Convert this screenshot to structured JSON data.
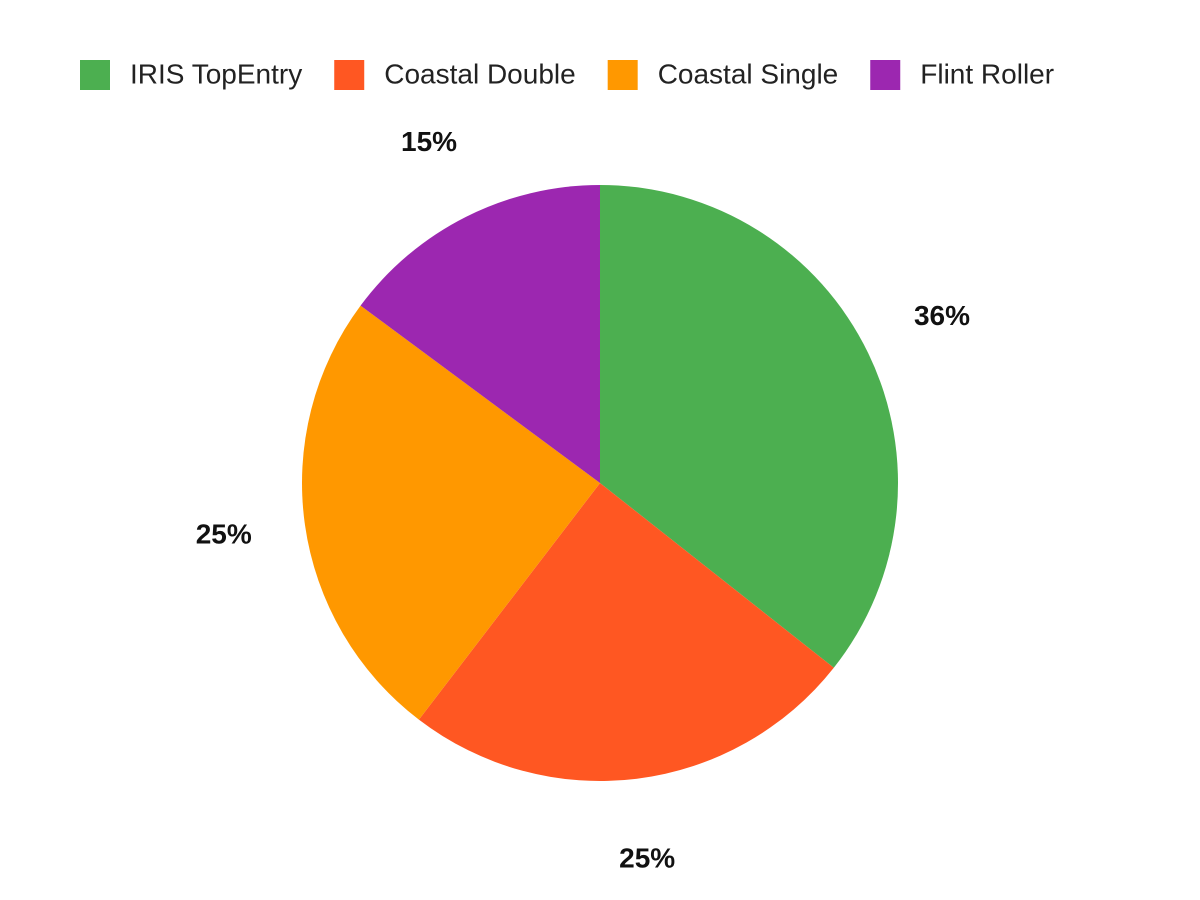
{
  "chart_data": {
    "type": "pie",
    "categories": [
      "IRIS TopEntry",
      "Coastal Double",
      "Coastal Single",
      "Flint Roller"
    ],
    "values": [
      36,
      25,
      25,
      15
    ],
    "value_labels": [
      "36%",
      "25%",
      "25%",
      "15%"
    ],
    "colors": [
      "#4caf50",
      "#ff5722",
      "#ff9800",
      "#9c27b0"
    ],
    "legend": "top"
  }
}
